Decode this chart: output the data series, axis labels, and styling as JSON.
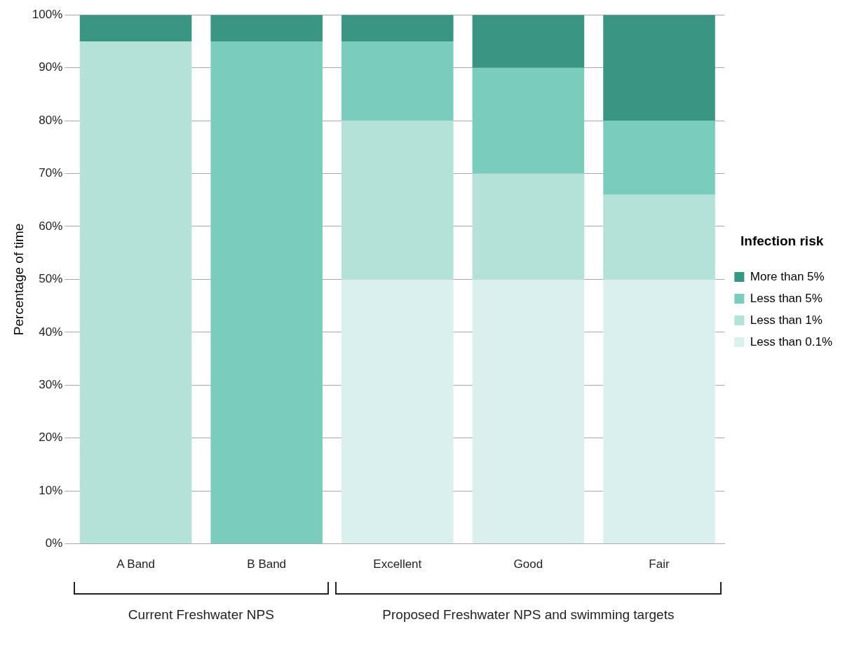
{
  "chart_data": {
    "type": "bar",
    "stacked": true,
    "ylabel": "Percentage of time",
    "legend_title": "Infection risk",
    "legend": "right",
    "grid": "y",
    "categories": [
      "A Band",
      "B Band",
      "Excellent",
      "Good",
      "Fair"
    ],
    "series": [
      {
        "name": "Less than 0.1%",
        "color": "#daf0ec",
        "values": [
          0,
          0,
          50,
          50,
          50
        ]
      },
      {
        "name": "Less than 1%",
        "color": "#b3e2d8",
        "values": [
          95,
          0,
          30,
          20,
          16
        ]
      },
      {
        "name": "Less than 5%",
        "color": "#7accbc",
        "values": [
          0,
          95,
          15,
          20,
          14
        ]
      },
      {
        "name": "More than 5%",
        "color": "#3a9683",
        "values": [
          5,
          5,
          5,
          10,
          20
        ]
      }
    ],
    "ylim": [
      0,
      100
    ],
    "yticks": [
      {
        "value": 0,
        "label": "0%"
      },
      {
        "value": 10,
        "label": "10%"
      },
      {
        "value": 20,
        "label": "20%"
      },
      {
        "value": 30,
        "label": "30%"
      },
      {
        "value": 40,
        "label": "40%"
      },
      {
        "value": 50,
        "label": "50%"
      },
      {
        "value": 60,
        "label": "60%"
      },
      {
        "value": 70,
        "label": "70%"
      },
      {
        "value": 80,
        "label": "80%"
      },
      {
        "value": 90,
        "label": "90%"
      },
      {
        "value": 100,
        "label": "100%"
      }
    ],
    "annotations": [
      "Current Freshwater NPS",
      "Proposed Freshwater NPS and swimming targets"
    ]
  }
}
